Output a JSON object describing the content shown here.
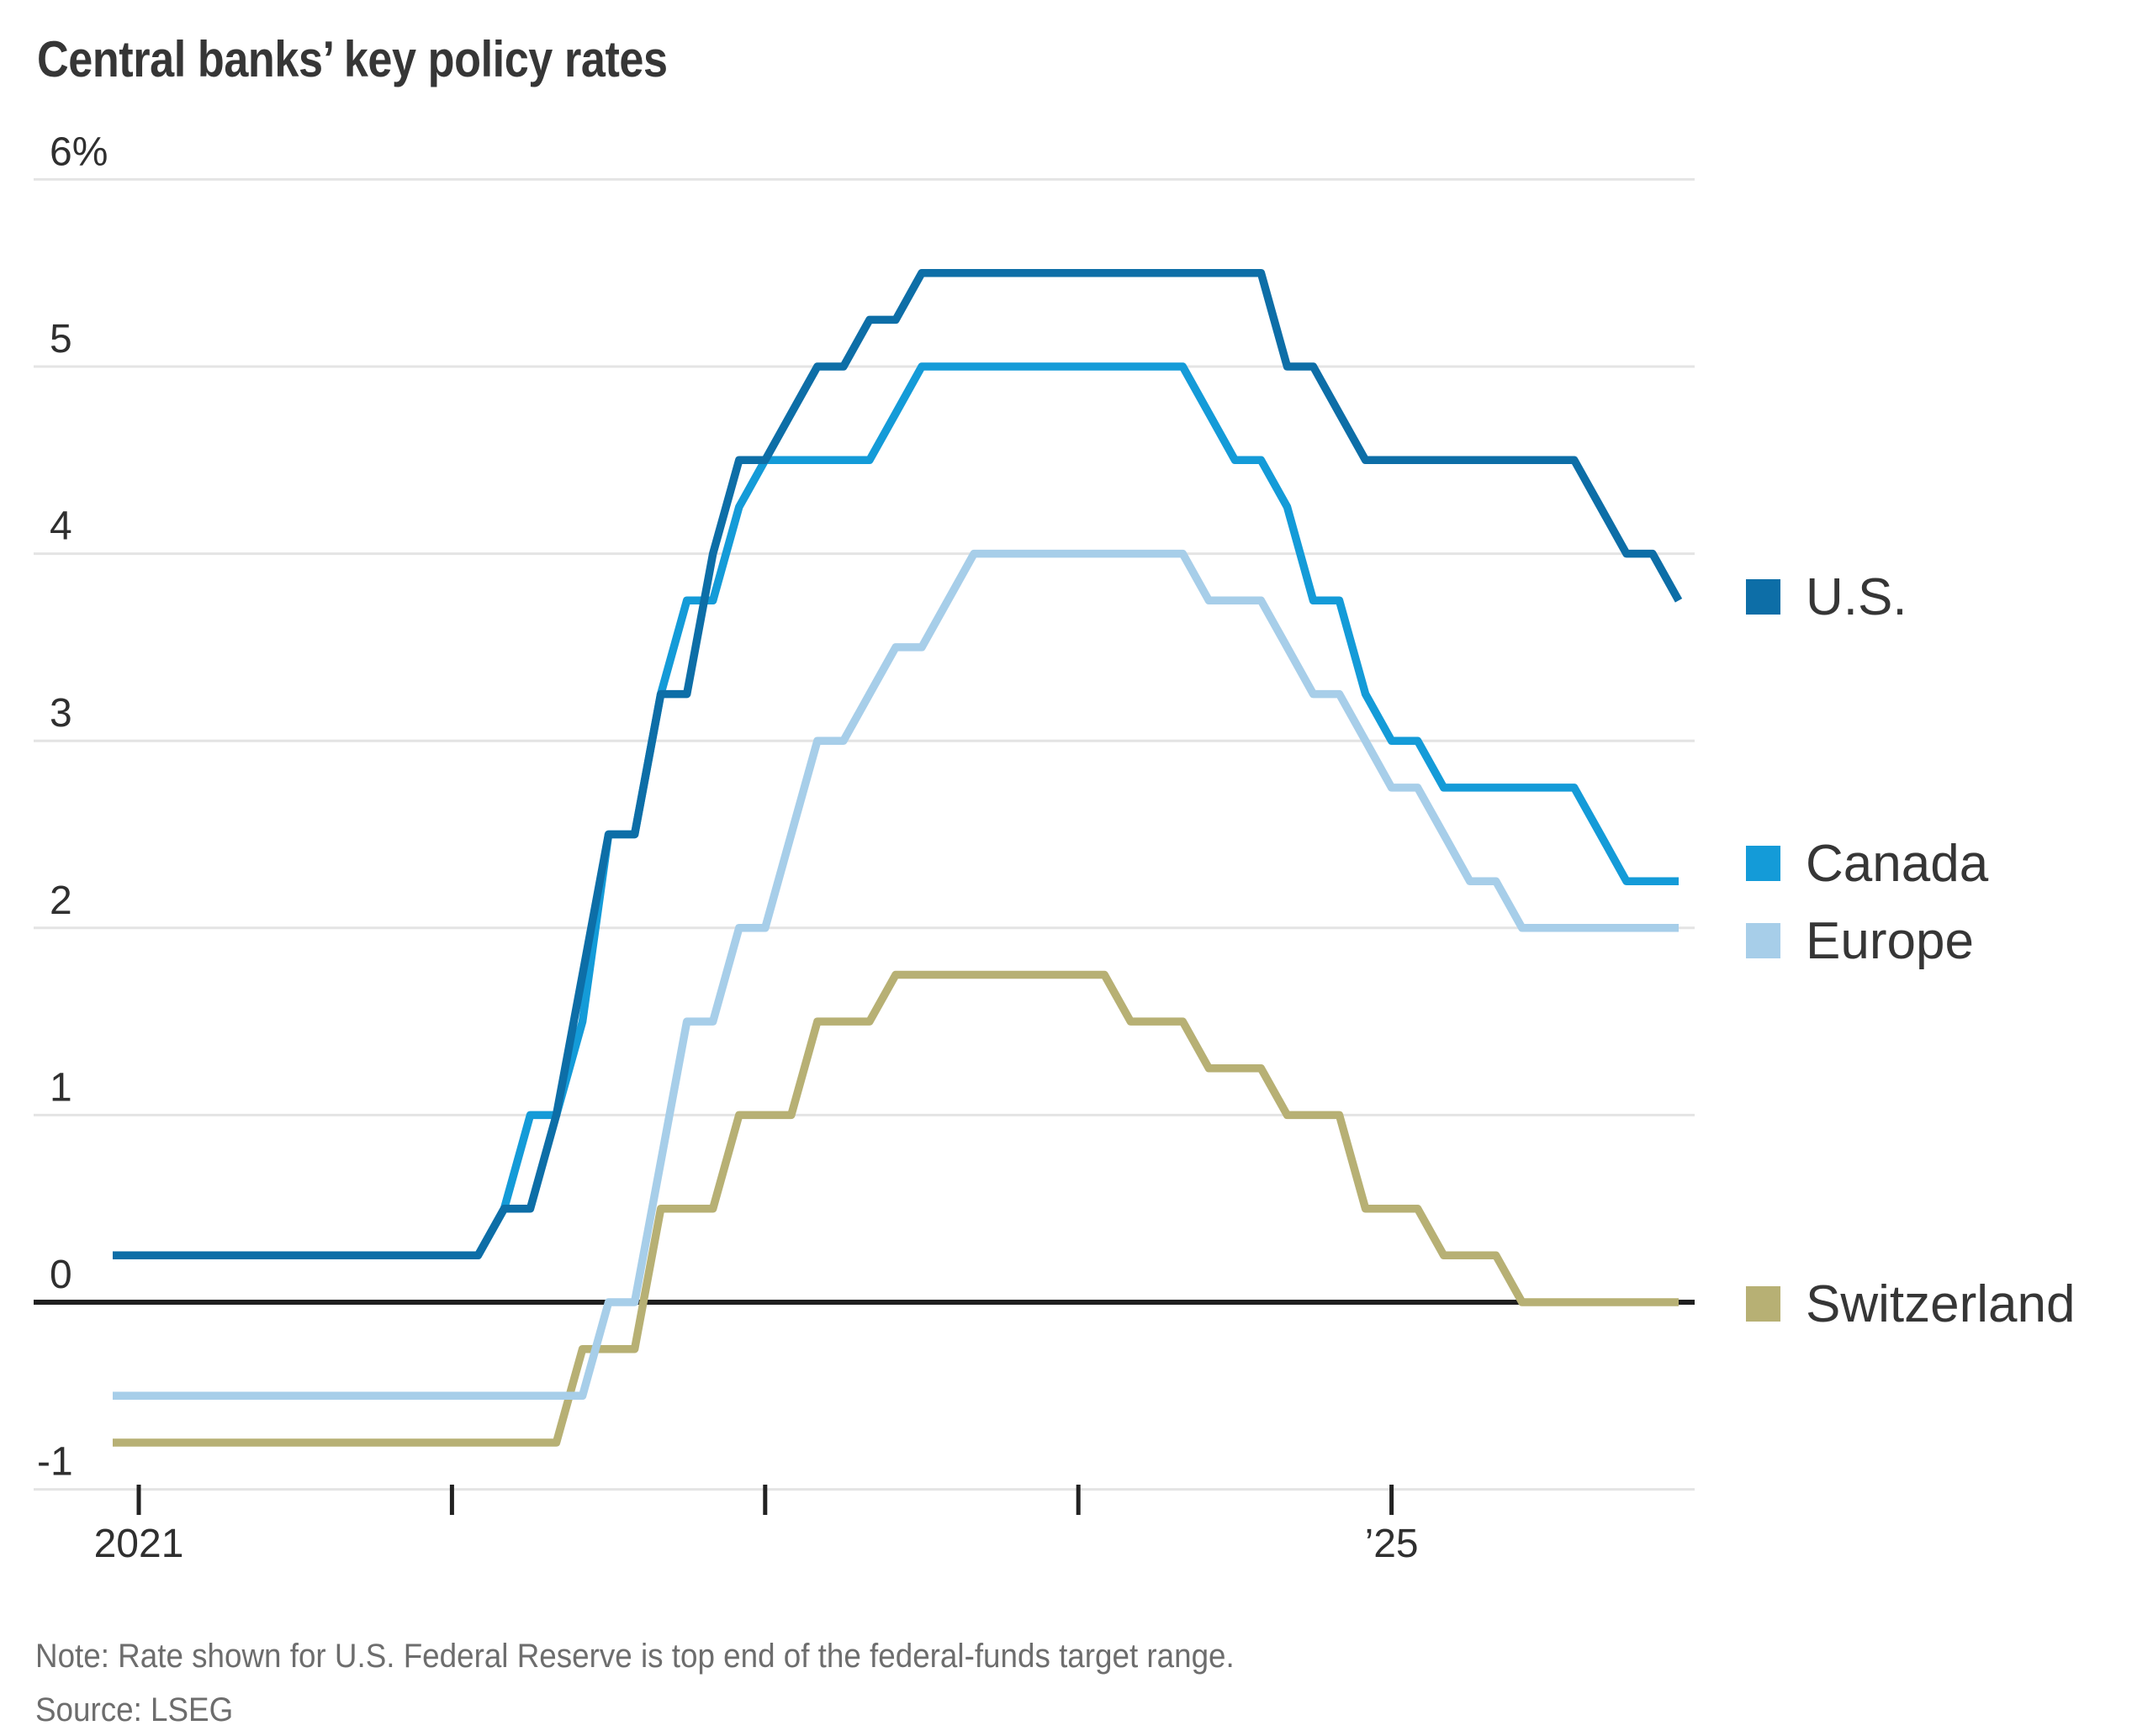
{
  "title": "Central banks’ key policy rates",
  "note": "Note: Rate shown for U.S. Federal Reserve is top end of the federal-funds target range.",
  "source": "Source: LSEG",
  "chart_data": {
    "type": "line",
    "title": "Central banks’ key policy rates",
    "xlabel": "",
    "ylabel": "",
    "unit": "%",
    "grid": true,
    "legend_position": "right",
    "background_color": "#ffffff",
    "zero_line_color": "#1f1f1f",
    "gridline_color": "#e4e4e4",
    "y_axis": {
      "range": [
        -1,
        6
      ],
      "ticks": [
        {
          "v": 6,
          "label": "6%"
        },
        {
          "v": 5,
          "label": "5"
        },
        {
          "v": 4,
          "label": "4"
        },
        {
          "v": 3,
          "label": "3"
        },
        {
          "v": 2,
          "label": "2"
        },
        {
          "v": 1,
          "label": "1"
        },
        {
          "v": 0,
          "label": "0"
        },
        {
          "v": -1,
          "label": "-1"
        }
      ]
    },
    "x_axis": {
      "range_years": [
        2020.917,
        2025.967
      ],
      "ticks": [
        {
          "t": 2021,
          "label": "2021"
        },
        {
          "t": 2022,
          "label": ""
        },
        {
          "t": 2023,
          "label": ""
        },
        {
          "t": 2024,
          "label": ""
        },
        {
          "t": 2025,
          "label": "’25"
        }
      ]
    },
    "series": [
      {
        "name": "U.S.",
        "color": "#0d6ea7",
        "points": [
          [
            "2020-12",
            0.25
          ],
          [
            "2022-02",
            0.25
          ],
          [
            "2022-03",
            0.5
          ],
          [
            "2022-04",
            0.5
          ],
          [
            "2022-05",
            1.0
          ],
          [
            "2022-06",
            1.75
          ],
          [
            "2022-07",
            2.5
          ],
          [
            "2022-08",
            2.5
          ],
          [
            "2022-09",
            3.25
          ],
          [
            "2022-10",
            3.25
          ],
          [
            "2022-11",
            4.0
          ],
          [
            "2022-12",
            4.5
          ],
          [
            "2023-01",
            4.5
          ],
          [
            "2023-02",
            4.75
          ],
          [
            "2023-03",
            5.0
          ],
          [
            "2023-04",
            5.0
          ],
          [
            "2023-05",
            5.25
          ],
          [
            "2023-06",
            5.25
          ],
          [
            "2023-07",
            5.5
          ],
          [
            "2024-08",
            5.5
          ],
          [
            "2024-09",
            5.0
          ],
          [
            "2024-10",
            5.0
          ],
          [
            "2024-11",
            4.75
          ],
          [
            "2024-12",
            4.5
          ],
          [
            "2025-08",
            4.5
          ],
          [
            "2025-09",
            4.25
          ],
          [
            "2025-10",
            4.0
          ],
          [
            "2025-11",
            4.0
          ],
          [
            "2025-12",
            3.75
          ]
        ]
      },
      {
        "name": "Canada",
        "color": "#149bd8",
        "points": [
          [
            "2020-12",
            0.25
          ],
          [
            "2022-02",
            0.25
          ],
          [
            "2022-03",
            0.5
          ],
          [
            "2022-04",
            1.0
          ],
          [
            "2022-05",
            1.0
          ],
          [
            "2022-06",
            1.5
          ],
          [
            "2022-07",
            2.5
          ],
          [
            "2022-08",
            2.5
          ],
          [
            "2022-09",
            3.25
          ],
          [
            "2022-10",
            3.75
          ],
          [
            "2022-11",
            3.75
          ],
          [
            "2022-12",
            4.25
          ],
          [
            "2023-01",
            4.5
          ],
          [
            "2023-05",
            4.5
          ],
          [
            "2023-06",
            4.75
          ],
          [
            "2023-07",
            5.0
          ],
          [
            "2024-05",
            5.0
          ],
          [
            "2024-06",
            4.75
          ],
          [
            "2024-07",
            4.5
          ],
          [
            "2024-08",
            4.5
          ],
          [
            "2024-09",
            4.25
          ],
          [
            "2024-10",
            3.75
          ],
          [
            "2024-11",
            3.75
          ],
          [
            "2024-12",
            3.25
          ],
          [
            "2025-01",
            3.0
          ],
          [
            "2025-02",
            3.0
          ],
          [
            "2025-03",
            2.75
          ],
          [
            "2025-08",
            2.75
          ],
          [
            "2025-09",
            2.5
          ],
          [
            "2025-10",
            2.25
          ],
          [
            "2025-12",
            2.25
          ]
        ]
      },
      {
        "name": "Europe",
        "color": "#a7cee9",
        "points": [
          [
            "2020-12",
            -0.5
          ],
          [
            "2022-06",
            -0.5
          ],
          [
            "2022-07",
            0.0
          ],
          [
            "2022-08",
            0.0
          ],
          [
            "2022-09",
            0.75
          ],
          [
            "2022-10",
            1.5
          ],
          [
            "2022-11",
            1.5
          ],
          [
            "2022-12",
            2.0
          ],
          [
            "2023-01",
            2.0
          ],
          [
            "2023-02",
            2.5
          ],
          [
            "2023-03",
            3.0
          ],
          [
            "2023-04",
            3.0
          ],
          [
            "2023-05",
            3.25
          ],
          [
            "2023-06",
            3.5
          ],
          [
            "2023-07",
            3.5
          ],
          [
            "2023-08",
            3.75
          ],
          [
            "2023-09",
            4.0
          ],
          [
            "2024-05",
            4.0
          ],
          [
            "2024-06",
            3.75
          ],
          [
            "2024-08",
            3.75
          ],
          [
            "2024-09",
            3.5
          ],
          [
            "2024-10",
            3.25
          ],
          [
            "2024-11",
            3.25
          ],
          [
            "2024-12",
            3.0
          ],
          [
            "2025-01",
            2.75
          ],
          [
            "2025-02",
            2.75
          ],
          [
            "2025-03",
            2.5
          ],
          [
            "2025-04",
            2.25
          ],
          [
            "2025-05",
            2.25
          ],
          [
            "2025-06",
            2.0
          ],
          [
            "2025-12",
            2.0
          ]
        ]
      },
      {
        "name": "Switzerland",
        "color": "#b7b074",
        "points": [
          [
            "2020-12",
            -0.75
          ],
          [
            "2022-05",
            -0.75
          ],
          [
            "2022-06",
            -0.25
          ],
          [
            "2022-08",
            -0.25
          ],
          [
            "2022-09",
            0.5
          ],
          [
            "2022-11",
            0.5
          ],
          [
            "2022-12",
            1.0
          ],
          [
            "2023-02",
            1.0
          ],
          [
            "2023-03",
            1.5
          ],
          [
            "2023-05",
            1.5
          ],
          [
            "2023-06",
            1.75
          ],
          [
            "2024-02",
            1.75
          ],
          [
            "2024-03",
            1.5
          ],
          [
            "2024-05",
            1.5
          ],
          [
            "2024-06",
            1.25
          ],
          [
            "2024-08",
            1.25
          ],
          [
            "2024-09",
            1.0
          ],
          [
            "2024-11",
            1.0
          ],
          [
            "2024-12",
            0.5
          ],
          [
            "2025-02",
            0.5
          ],
          [
            "2025-03",
            0.25
          ],
          [
            "2025-05",
            0.25
          ],
          [
            "2025-06",
            0.0
          ],
          [
            "2025-12",
            0.0
          ]
        ]
      }
    ]
  }
}
